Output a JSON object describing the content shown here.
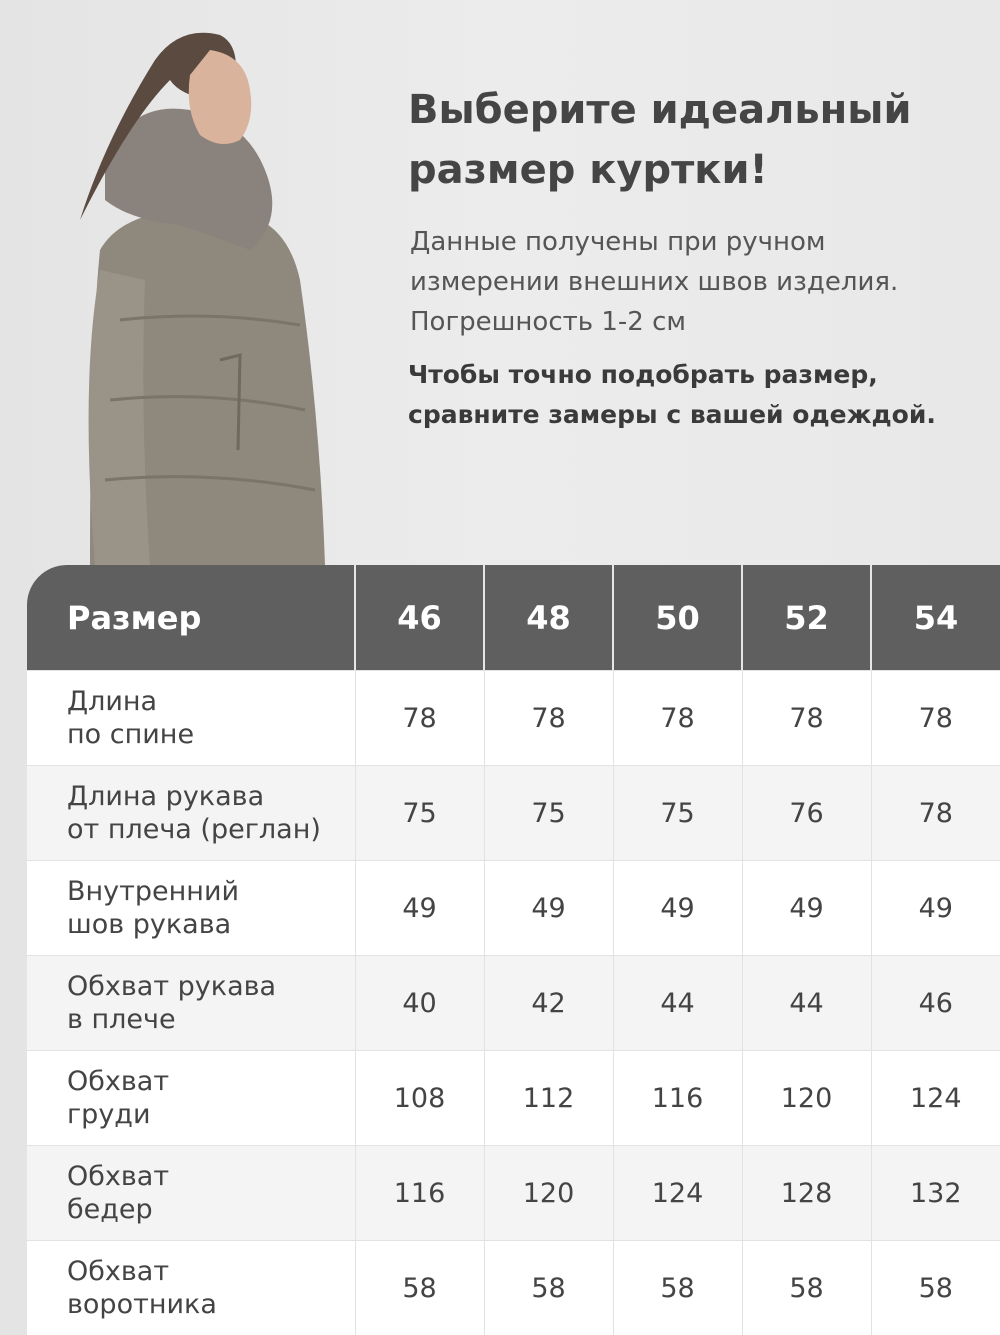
{
  "heading": {
    "title_line1": "Выберите идеальный",
    "title_line2": "размер куртки!",
    "subtitle_line1": "Данные получены при ручном",
    "subtitle_line2": "измерении внешних швов изделия.",
    "subtitle_line3": "Погрешность 1-2 см",
    "note_line1": "Чтобы точно подобрать размер,",
    "note_line2": "сравните замеры с вашей одеждой."
  },
  "colors": {
    "header_bg": "#5f5f5f",
    "row_alt": "#f4f4f4",
    "jacket": "#8f887c",
    "fur": "#8a827c"
  },
  "table": {
    "header": [
      "Размер",
      "46",
      "48",
      "50",
      "52",
      "54"
    ],
    "rows": [
      {
        "label": "Длина\nпо спине",
        "values": [
          "78",
          "78",
          "78",
          "78",
          "78"
        ]
      },
      {
        "label": "Длина рукава\nот плеча (реглан)",
        "values": [
          "75",
          "75",
          "75",
          "76",
          "78"
        ]
      },
      {
        "label": "Внутренний\nшов рукава",
        "values": [
          "49",
          "49",
          "49",
          "49",
          "49"
        ]
      },
      {
        "label": "Обхват рукава\nв плече",
        "values": [
          "40",
          "42",
          "44",
          "44",
          "46"
        ]
      },
      {
        "label": "Обхват\nгруди",
        "values": [
          "108",
          "112",
          "116",
          "120",
          "124"
        ]
      },
      {
        "label": "Обхват\nбедер",
        "values": [
          "116",
          "120",
          "124",
          "128",
          "132"
        ]
      },
      {
        "label": "Обхват\nворотника",
        "values": [
          "58",
          "58",
          "58",
          "58",
          "58"
        ]
      }
    ]
  }
}
